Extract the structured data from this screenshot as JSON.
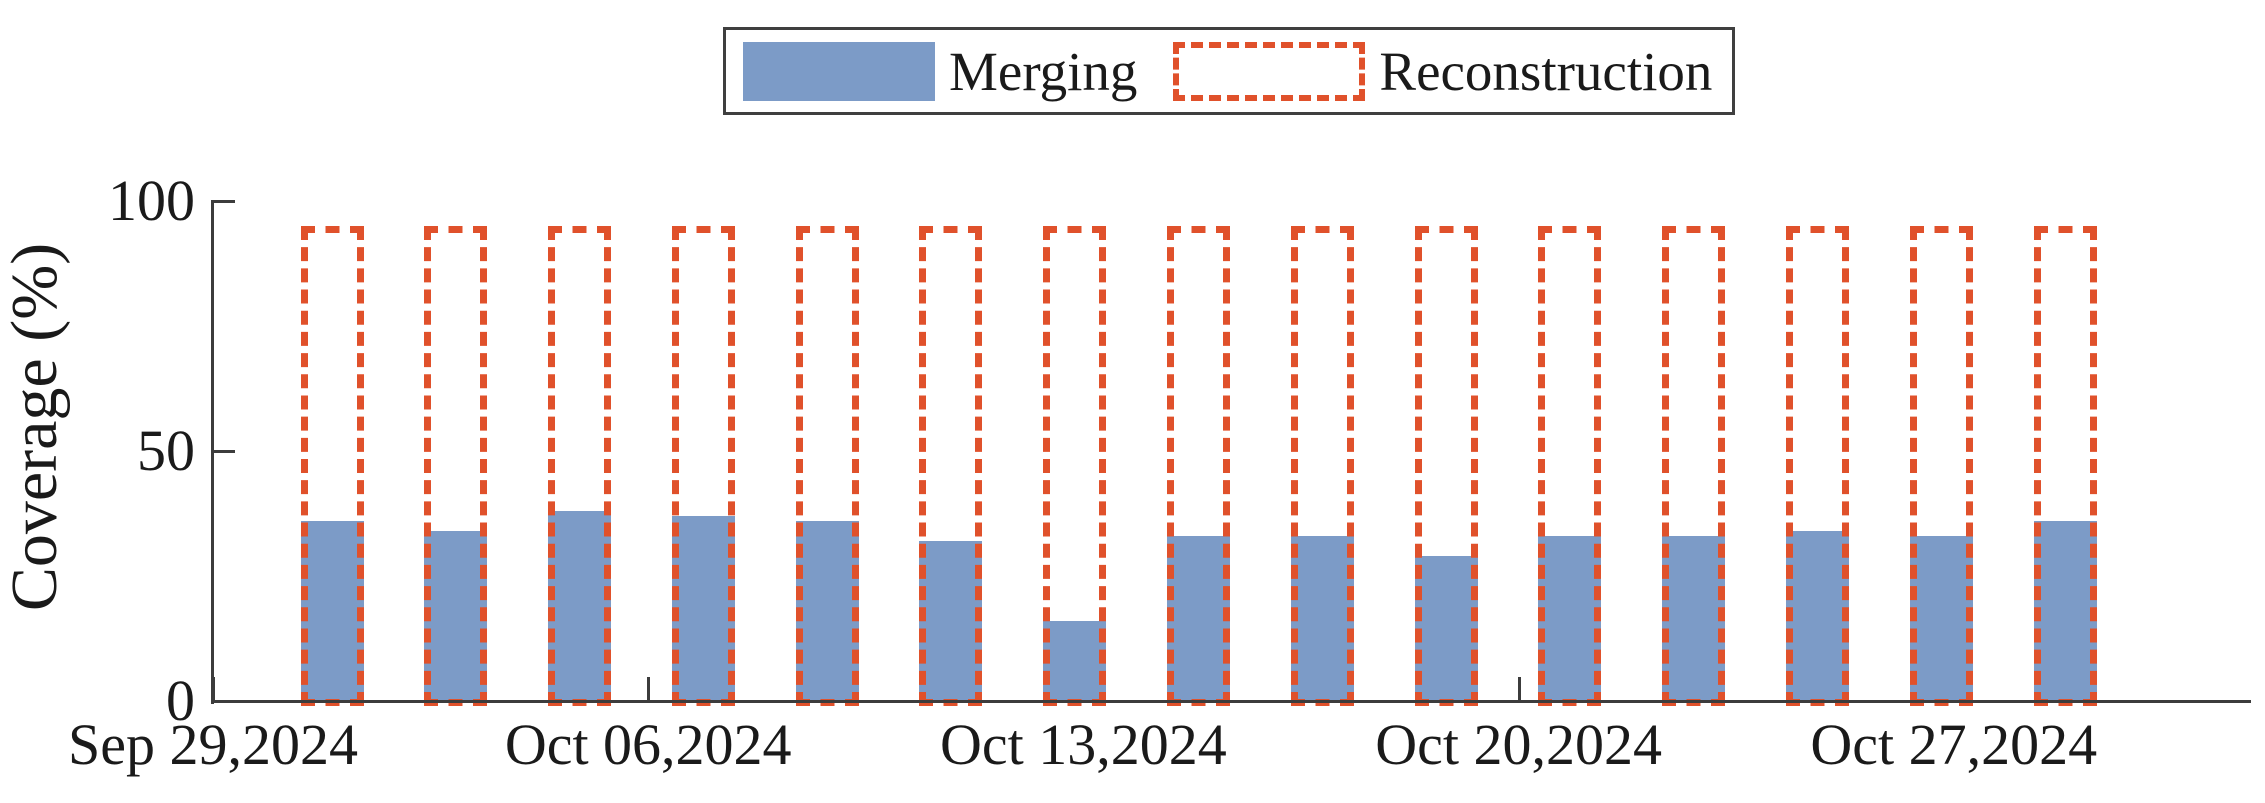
{
  "chart_data": {
    "type": "bar",
    "title": "",
    "xlabel": "",
    "ylabel": "Coverage (%)",
    "ylim": [
      0,
      100
    ],
    "yticks": [
      0,
      50,
      100
    ],
    "ytick_labels": [
      "0",
      "50",
      "100"
    ],
    "xtick_labels": [
      "Sep 29,2024",
      "Oct 06,2024",
      "Oct 13,2024",
      "Oct 20,2024",
      "Oct 27,2024"
    ],
    "grid": false,
    "legend_position": "top-center",
    "legend": [
      {
        "label": "Merging",
        "style": "solid-fill",
        "color": "#7c9bc7"
      },
      {
        "label": "Reconstruction",
        "style": "dashed-outline",
        "color": "#e0512b"
      }
    ],
    "n_bars": 15,
    "bar_interval_days": 2,
    "series": [
      {
        "name": "Merging",
        "values": [
          36,
          34,
          38,
          37,
          36,
          32,
          16,
          33,
          33,
          29,
          33,
          33,
          34,
          33,
          36
        ]
      },
      {
        "name": "Reconstruction",
        "values": [
          95,
          95,
          95,
          95,
          95,
          95,
          95,
          95,
          95,
          95,
          95,
          95,
          95,
          95,
          95
        ]
      }
    ]
  },
  "colors": {
    "merging_fill": "#7c9bc7",
    "reconstruction_dash": "#e0512b",
    "axis": "#3c3c3c",
    "text": "#1a1a1a",
    "background": "#ffffff"
  }
}
